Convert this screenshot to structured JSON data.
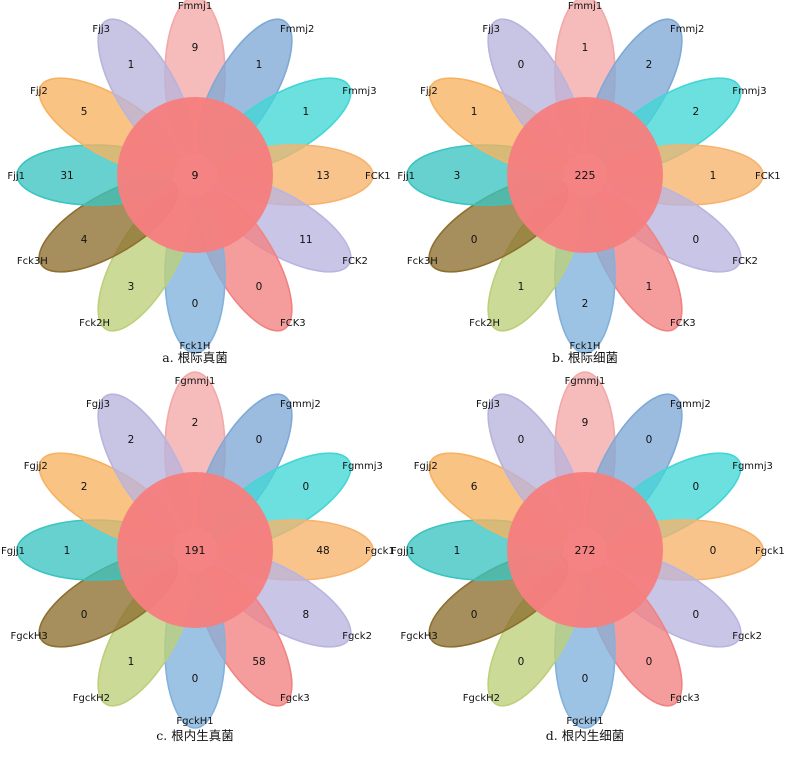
{
  "colors": [
    "#f4a8a8",
    "#7fa9d6",
    "#43d6d6",
    "#f6b36c",
    "#b9b5e0",
    "#f28282",
    "#82b2dc",
    "#bcd07a",
    "#8d6f2e",
    "#3bc4c0",
    "#f7b260",
    "#b8b4dc"
  ],
  "center_color": "#f57f7f",
  "panels": [
    {
      "caption": "a. 根际真菌",
      "center_value": "9",
      "petals": [
        {
          "label": "Fmmj1",
          "value": "9"
        },
        {
          "label": "Fmmj2",
          "value": "1"
        },
        {
          "label": "Fmmj3",
          "value": "1"
        },
        {
          "label": "FCK1",
          "value": "13"
        },
        {
          "label": "FCK2",
          "value": "11"
        },
        {
          "label": "FCK3",
          "value": "0"
        },
        {
          "label": "Fck1H",
          "value": "0"
        },
        {
          "label": "Fck2H",
          "value": "3"
        },
        {
          "label": "Fck3H",
          "value": "4"
        },
        {
          "label": "Fjj1",
          "value": "31"
        },
        {
          "label": "Fjj2",
          "value": "5"
        },
        {
          "label": "Fjj3",
          "value": "1"
        }
      ]
    },
    {
      "caption": "b. 根际细菌",
      "center_value": "225",
      "petals": [
        {
          "label": "Fmmj1",
          "value": "1"
        },
        {
          "label": "Fmmj2",
          "value": "2"
        },
        {
          "label": "Fmmj3",
          "value": "2"
        },
        {
          "label": "FCK1",
          "value": "1"
        },
        {
          "label": "FCK2",
          "value": "0"
        },
        {
          "label": "FCK3",
          "value": "1"
        },
        {
          "label": "Fck1H",
          "value": "2"
        },
        {
          "label": "Fck2H",
          "value": "1"
        },
        {
          "label": "Fck3H",
          "value": "0"
        },
        {
          "label": "Fjj1",
          "value": "3"
        },
        {
          "label": "Fjj2",
          "value": "1"
        },
        {
          "label": "Fjj3",
          "value": "0"
        }
      ]
    },
    {
      "caption": "c. 根内生真菌",
      "center_value": "191",
      "petals": [
        {
          "label": "Fgmmj1",
          "value": "2"
        },
        {
          "label": "Fgmmj2",
          "value": "0"
        },
        {
          "label": "Fgmmj3",
          "value": "0"
        },
        {
          "label": "Fgck1",
          "value": "48"
        },
        {
          "label": "Fgck2",
          "value": "8"
        },
        {
          "label": "Fgck3",
          "value": "58"
        },
        {
          "label": "FgckH1",
          "value": "0"
        },
        {
          "label": "FgckH2",
          "value": "1"
        },
        {
          "label": "FgckH3",
          "value": "0"
        },
        {
          "label": "Fgjj1",
          "value": "1"
        },
        {
          "label": "Fgjj2",
          "value": "2"
        },
        {
          "label": "Fgjj3",
          "value": "2"
        }
      ]
    },
    {
      "caption": "d. 根内生细菌",
      "center_value": "272",
      "petals": [
        {
          "label": "Fgmmj1",
          "value": "9"
        },
        {
          "label": "Fgmmj2",
          "value": "0"
        },
        {
          "label": "Fgmmj3",
          "value": "0"
        },
        {
          "label": "Fgck1",
          "value": "0"
        },
        {
          "label": "Fgck2",
          "value": "0"
        },
        {
          "label": "Fgck3",
          "value": "0"
        },
        {
          "label": "FgckH1",
          "value": "0"
        },
        {
          "label": "FgckH2",
          "value": "0"
        },
        {
          "label": "FgckH3",
          "value": "0"
        },
        {
          "label": "Fgjj1",
          "value": "1"
        },
        {
          "label": "Fgjj2",
          "value": "6"
        },
        {
          "label": "Fgjj3",
          "value": "0"
        }
      ]
    }
  ]
}
